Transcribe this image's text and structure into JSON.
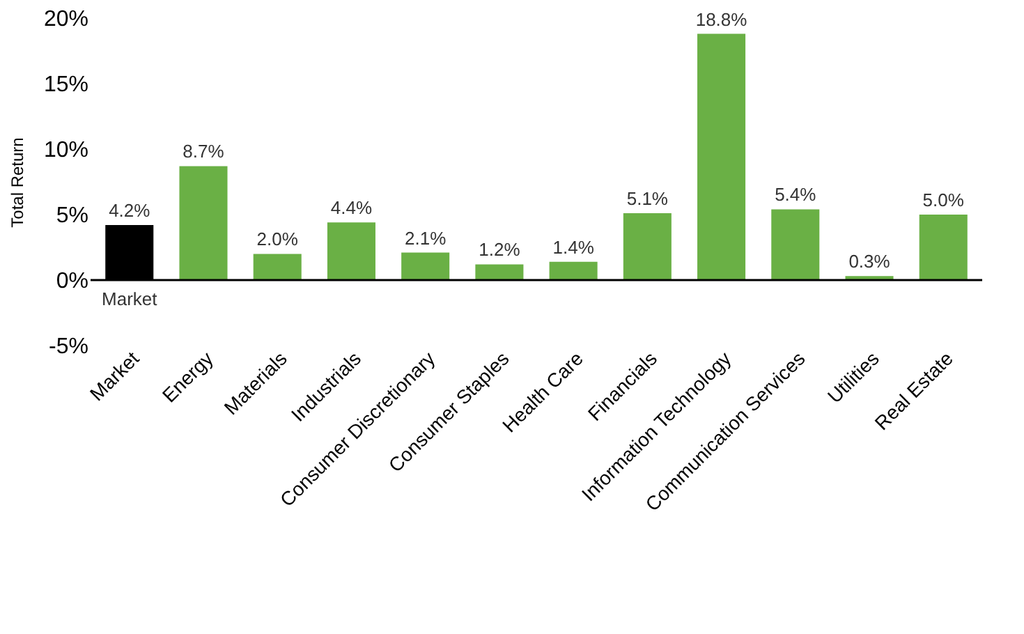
{
  "chart_data": {
    "type": "bar",
    "ylabel": "Total Return",
    "categories": [
      "Market",
      "Energy",
      "Materials",
      "Industrials",
      "Consumer Discretionary",
      "Consumer Staples",
      "Health Care",
      "Financials",
      "Information Technology",
      "Communication Services",
      "Utilities",
      "Real Estate"
    ],
    "values": [
      4.2,
      8.7,
      2.0,
      4.4,
      2.1,
      1.2,
      1.4,
      5.1,
      18.8,
      5.4,
      0.3,
      5.0
    ],
    "value_labels": [
      "4.2%",
      "8.7%",
      "2.0%",
      "4.4%",
      "2.1%",
      "1.2%",
      "1.4%",
      "5.1%",
      "18.8%",
      "5.4%",
      "0.3%",
      "5.0%"
    ],
    "colors": [
      "#000000",
      "#6ab045",
      "#6ab045",
      "#6ab045",
      "#6ab045",
      "#6ab045",
      "#6ab045",
      "#6ab045",
      "#6ab045",
      "#6ab045",
      "#6ab045",
      "#6ab045"
    ],
    "ylim": [
      -5,
      20
    ],
    "yticks": [
      {
        "value": -5,
        "label": "-5%"
      },
      {
        "value": 0,
        "label": "0%"
      },
      {
        "value": 5,
        "label": "5%"
      },
      {
        "value": 10,
        "label": "10%"
      },
      {
        "value": 15,
        "label": "15%"
      },
      {
        "value": 20,
        "label": "20%"
      }
    ],
    "ref_lines": [
      {
        "axis": "y",
        "value": 0,
        "color": "#000000"
      }
    ],
    "annotations": [
      {
        "text": "Market",
        "x": "Market",
        "y": 0
      }
    ],
    "grid": false
  }
}
